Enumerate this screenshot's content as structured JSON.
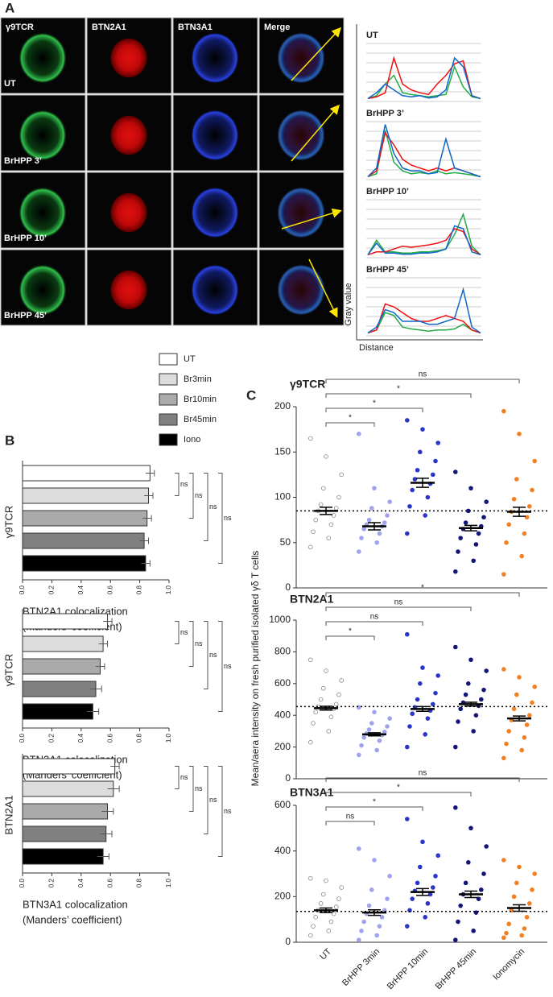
{
  "panel_labels": [
    "A",
    "B",
    "C"
  ],
  "image_panel": {
    "columns": [
      "γ9TCR",
      "BTN2A1",
      "BTN3A1",
      "Merge"
    ],
    "rows": [
      "UT",
      "BrHPP 3’",
      "BrHPP 10’",
      "BrHPP 45’"
    ],
    "profile_ylabel": "Gray value",
    "profile_xlabel": "Distance"
  },
  "legend_b": {
    "names": [
      "UT",
      "Br3min",
      "Br10min",
      "Br45min",
      "Iono"
    ],
    "colors": [
      "#ffffff",
      "#dcdcdc",
      "#aaaaaa",
      "#808080",
      "#000000"
    ]
  },
  "panel_c": {
    "ylabel": "Mean/aera intensity on fresh purified isolated γδ T cells",
    "categories": [
      "UT",
      "BrHPP 3min",
      "BrHPP 10min",
      "BrHPP 45min",
      "Ionomycin"
    ],
    "colors": [
      "#888888",
      "#9fa3ee",
      "#2b35c8",
      "#14157a",
      "#f28020"
    ]
  },
  "chart_data": [
    {
      "type": "line",
      "title": "UT",
      "ylim": [
        0,
        100
      ],
      "series": [
        {
          "color": "#22aa44",
          "values": [
            5,
            10,
            30,
            45,
            15,
            12,
            10,
            8,
            10,
            12,
            60,
            25,
            8,
            5
          ]
        },
        {
          "color": "#ee1111",
          "values": [
            5,
            8,
            15,
            75,
            30,
            20,
            15,
            12,
            30,
            45,
            65,
            70,
            10,
            5
          ]
        },
        {
          "color": "#1166cc",
          "values": [
            5,
            15,
            30,
            20,
            10,
            8,
            10,
            6,
            8,
            20,
            75,
            60,
            10,
            5
          ]
        }
      ]
    },
    {
      "type": "line",
      "title": "BrHPP 3’",
      "ylim": [
        0,
        100
      ],
      "series": [
        {
          "color": "#22aa44",
          "values": [
            5,
            10,
            85,
            30,
            15,
            10,
            12,
            10,
            15,
            10,
            12,
            10,
            8,
            5
          ]
        },
        {
          "color": "#ee1111",
          "values": [
            5,
            15,
            80,
            60,
            35,
            25,
            20,
            15,
            20,
            15,
            20,
            15,
            10,
            5
          ]
        },
        {
          "color": "#1166cc",
          "values": [
            5,
            20,
            95,
            45,
            20,
            15,
            15,
            10,
            12,
            70,
            20,
            15,
            10,
            5
          ]
        }
      ]
    },
    {
      "type": "line",
      "title": "BrHPP 10’",
      "ylim": [
        0,
        100
      ],
      "series": [
        {
          "color": "#22aa44",
          "values": [
            5,
            30,
            10,
            10,
            8,
            8,
            10,
            10,
            12,
            15,
            40,
            75,
            20,
            5
          ]
        },
        {
          "color": "#ee1111",
          "values": [
            5,
            10,
            10,
            15,
            20,
            18,
            20,
            22,
            25,
            30,
            50,
            45,
            15,
            5
          ]
        },
        {
          "color": "#1166cc",
          "values": [
            5,
            25,
            8,
            8,
            6,
            6,
            8,
            8,
            10,
            15,
            55,
            50,
            10,
            5
          ]
        }
      ]
    },
    {
      "type": "line",
      "title": "BrHPP 45’",
      "ylim": [
        0,
        100
      ],
      "series": [
        {
          "color": "#22aa44",
          "values": [
            5,
            10,
            40,
            35,
            15,
            12,
            10,
            8,
            10,
            10,
            12,
            20,
            10,
            5
          ]
        },
        {
          "color": "#ee1111",
          "values": [
            5,
            10,
            55,
            50,
            40,
            30,
            25,
            25,
            30,
            35,
            30,
            25,
            10,
            5
          ]
        },
        {
          "color": "#1166cc",
          "values": [
            5,
            15,
            45,
            40,
            25,
            25,
            25,
            20,
            20,
            25,
            30,
            80,
            15,
            5
          ]
        }
      ]
    },
    {
      "type": "bar",
      "ylabel": "γ9TCR",
      "xlabel": [
        "BTN2A1 colocalization",
        "(Manders’ coefficient)"
      ],
      "values": [
        0.87,
        0.86,
        0.85,
        0.83,
        0.84
      ],
      "errors": [
        0.03,
        0.03,
        0.03,
        0.03,
        0.03
      ],
      "xlim": [
        0,
        1
      ],
      "xticks": [
        {
          "value": 0,
          "label": "0.0"
        },
        0.2,
        0.4,
        0.6,
        0.8,
        {
          "value": 1,
          "label": "1.0"
        }
      ],
      "brackets": [
        "ns",
        "ns",
        "ns",
        "ns"
      ]
    },
    {
      "type": "bar",
      "ylabel": "γ9TCR",
      "xlabel": [
        "BTN3A1 colocalization",
        "(Manders’ coefficient)"
      ],
      "values": [
        0.58,
        0.55,
        0.53,
        0.5,
        0.48
      ],
      "errors": [
        0.03,
        0.03,
        0.03,
        0.04,
        0.04
      ],
      "xlim": [
        0,
        1
      ],
      "xticks": [
        {
          "value": 0,
          "label": "0.0"
        },
        0.2,
        0.4,
        0.6,
        0.8,
        {
          "value": 1,
          "label": "1.0"
        }
      ],
      "brackets": [
        "ns",
        "ns",
        "ns",
        "ns"
      ]
    },
    {
      "type": "bar",
      "ylabel": "BTN2A1",
      "xlabel": [
        "BTN3A1 colocalization",
        "(Manders’ coefficient)"
      ],
      "values": [
        0.63,
        0.62,
        0.58,
        0.57,
        0.55
      ],
      "errors": [
        0.03,
        0.04,
        0.04,
        0.04,
        0.04
      ],
      "xlim": [
        0,
        1
      ],
      "xticks": [
        {
          "value": 0,
          "label": "0.0"
        },
        0.2,
        0.4,
        0.6,
        0.8,
        {
          "value": 1,
          "label": "1.0"
        }
      ],
      "brackets": [
        "ns",
        "ns",
        "ns",
        "ns"
      ]
    },
    {
      "type": "strip",
      "title": "γ9TCR",
      "ylim": [
        0,
        200
      ],
      "yticks": [
        0,
        50,
        100,
        150,
        200
      ],
      "reference": 85,
      "means": [
        85,
        68,
        116,
        66,
        84
      ],
      "errors": [
        4,
        4,
        5,
        3,
        5
      ],
      "brackets": [
        "*",
        "*",
        "*",
        "ns"
      ],
      "points": [
        [
          45,
          55,
          62,
          70,
          75,
          80,
          85,
          88,
          92,
          100,
          110,
          125,
          145,
          165
        ],
        [
          40,
          50,
          55,
          60,
          65,
          68,
          70,
          72,
          75,
          80,
          88,
          95,
          110,
          170
        ],
        [
          60,
          80,
          90,
          100,
          108,
          115,
          120,
          125,
          130,
          140,
          150,
          160,
          175,
          185
        ],
        [
          18,
          30,
          40,
          48,
          55,
          60,
          65,
          68,
          72,
          78,
          85,
          95,
          110,
          128
        ],
        [
          15,
          35,
          50,
          60,
          70,
          78,
          84,
          90,
          98,
          108,
          120,
          140,
          170,
          195
        ]
      ]
    },
    {
      "type": "strip",
      "title": "BTN2A1",
      "ylim": [
        0,
        1000
      ],
      "yticks": [
        0,
        200,
        400,
        600,
        800,
        1000
      ],
      "reference": 455,
      "means": [
        445,
        280,
        440,
        470,
        380
      ],
      "errors": [
        12,
        10,
        15,
        12,
        15
      ],
      "brackets": [
        "*",
        "ns",
        "ns",
        "*"
      ],
      "points": [
        [
          230,
          300,
          350,
          390,
          420,
          440,
          455,
          470,
          500,
          530,
          570,
          620,
          680,
          750
        ],
        [
          150,
          180,
          210,
          240,
          260,
          275,
          285,
          295,
          310,
          330,
          350,
          380,
          420,
          450
        ],
        [
          200,
          280,
          330,
          380,
          410,
          430,
          450,
          470,
          500,
          540,
          600,
          650,
          700,
          910
        ],
        [
          200,
          300,
          360,
          400,
          440,
          460,
          480,
          500,
          530,
          560,
          600,
          680,
          750,
          830
        ],
        [
          130,
          180,
          220,
          260,
          300,
          340,
          370,
          400,
          440,
          480,
          530,
          580,
          640,
          690
        ]
      ]
    },
    {
      "type": "strip",
      "title": "BTN3A1",
      "ylim": [
        0,
        600
      ],
      "yticks": [
        0,
        200,
        400,
        600
      ],
      "reference": 135,
      "means": [
        140,
        130,
        220,
        210,
        150
      ],
      "errors": [
        10,
        12,
        15,
        14,
        14
      ],
      "brackets": [
        "ns",
        "*",
        "*",
        "ns"
      ],
      "points": [
        [
          30,
          50,
          70,
          90,
          110,
          125,
          140,
          155,
          170,
          190,
          210,
          240,
          270,
          280
        ],
        [
          10,
          30,
          50,
          70,
          90,
          110,
          125,
          140,
          160,
          190,
          230,
          290,
          360,
          410
        ],
        [
          70,
          110,
          140,
          170,
          190,
          210,
          225,
          240,
          260,
          290,
          330,
          380,
          440,
          540
        ],
        [
          10,
          50,
          90,
          130,
          160,
          190,
          210,
          230,
          260,
          300,
          350,
          420,
          500,
          590
        ],
        [
          20,
          30,
          40,
          60,
          80,
          110,
          140,
          170,
          200,
          230,
          260,
          300,
          330,
          360
        ]
      ]
    }
  ]
}
